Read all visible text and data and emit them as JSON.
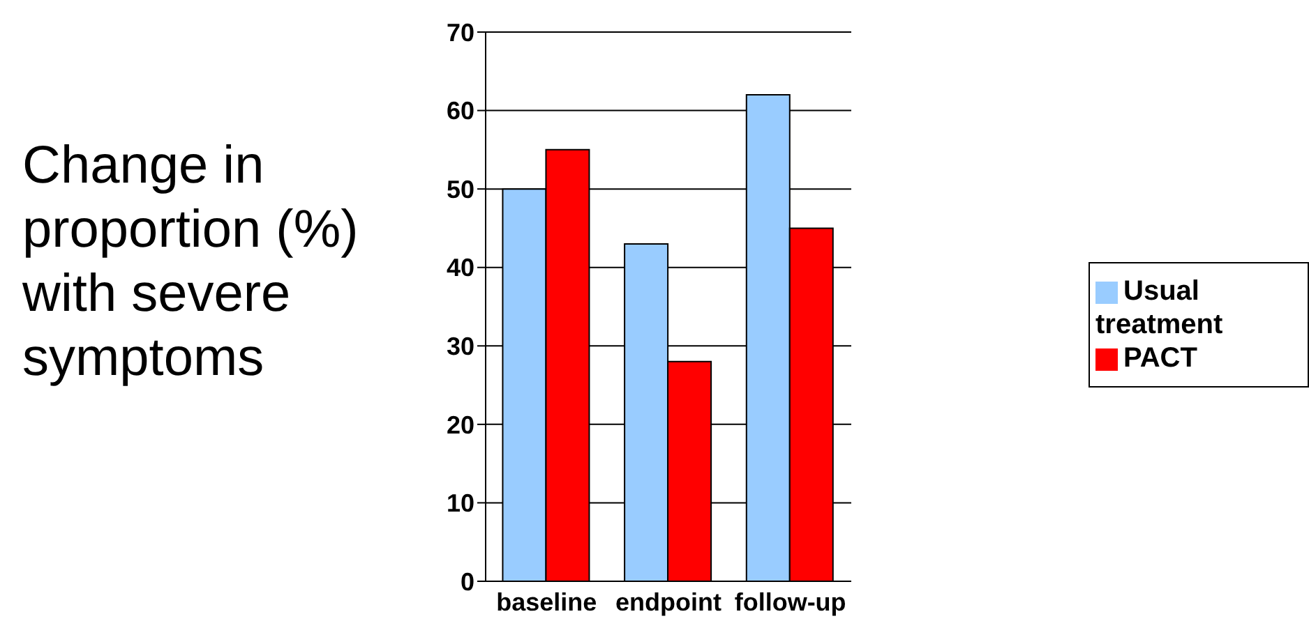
{
  "chart_data": {
    "type": "bar",
    "ylabel": "Change in proportion (%) with severe symptoms",
    "categories": [
      "baseline",
      "endpoint",
      "follow-up"
    ],
    "series": [
      {
        "name": "Usual treatment",
        "color": "#99ccff",
        "values": [
          50,
          43,
          62
        ]
      },
      {
        "name": "PACT",
        "color": "#ff0000",
        "values": [
          55,
          28,
          45
        ]
      }
    ],
    "ylim": [
      0,
      70
    ],
    "yticks": [
      0,
      10,
      20,
      30,
      40,
      50,
      60,
      70
    ],
    "grid": "y",
    "legend": "right"
  }
}
